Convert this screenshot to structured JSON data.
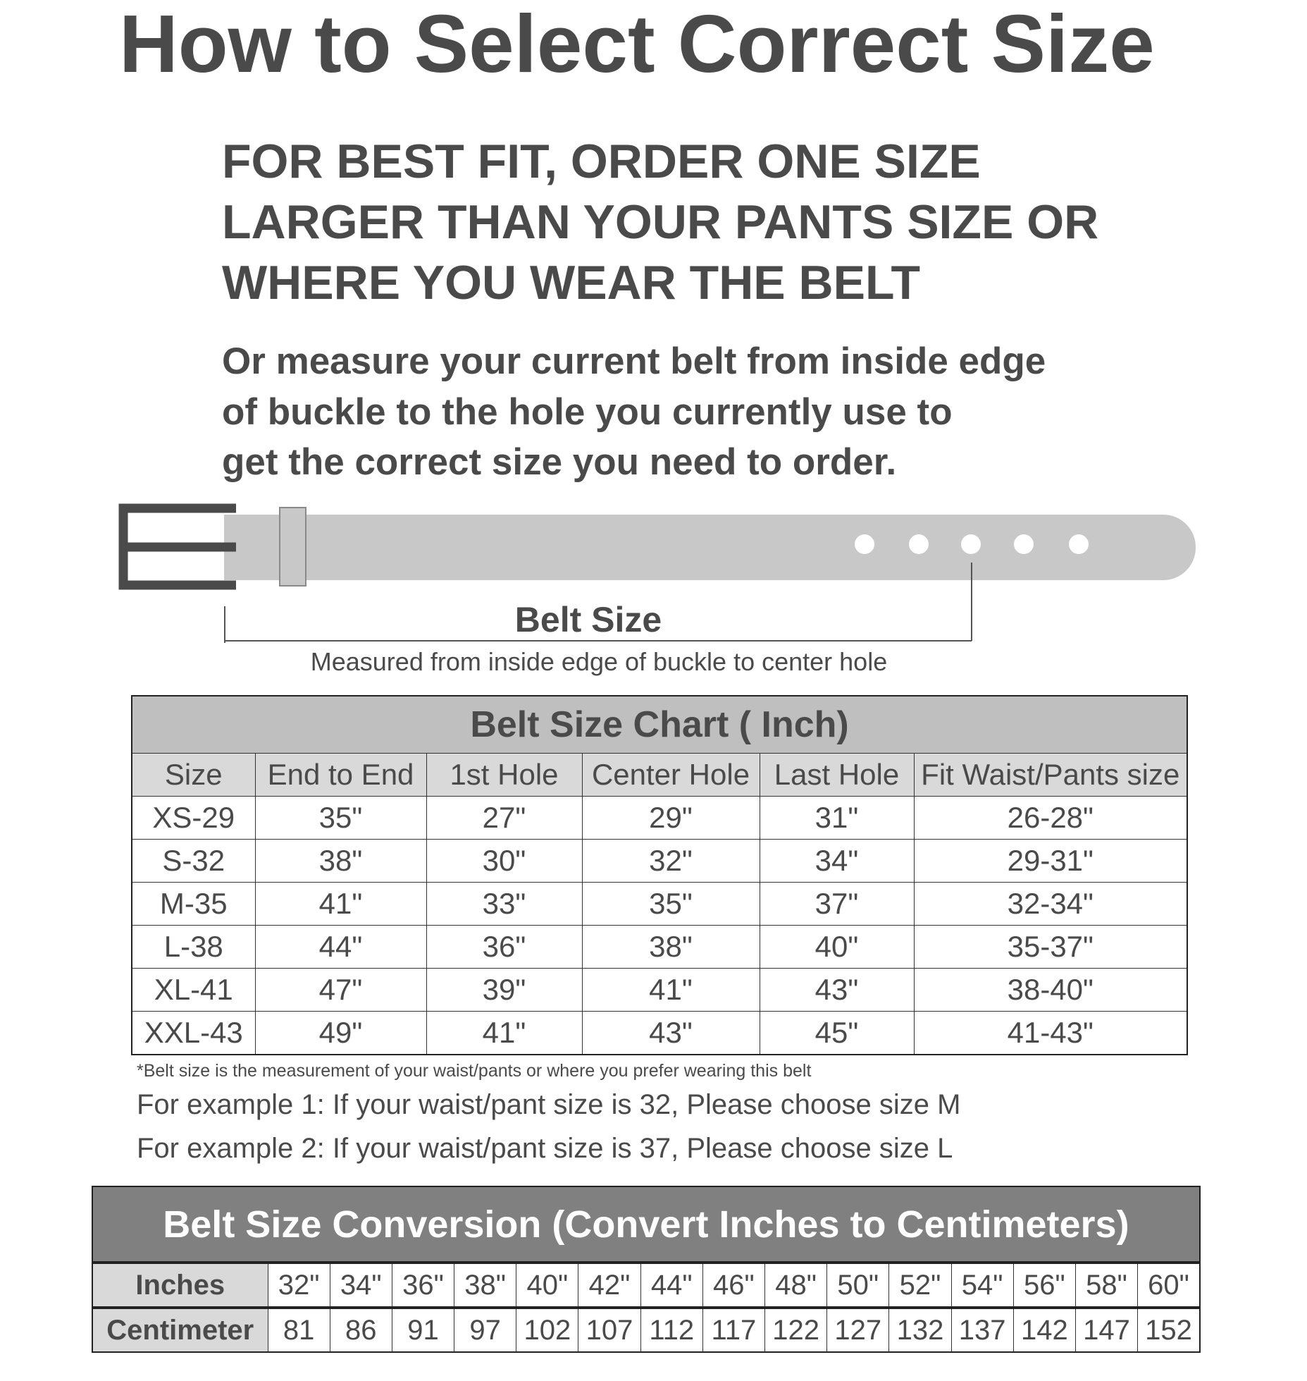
{
  "title": "How to Select Correct Size",
  "advice_lines": [
    "FOR BEST FIT, ORDER ONE SIZE",
    "LARGER THAN YOUR PANTS SIZE OR",
    "WHERE YOU WEAR THE BELT"
  ],
  "measure_lines": [
    "Or measure your current belt from inside edge",
    "of buckle to the hole you currently use to",
    "get the correct size you need to order."
  ],
  "diagram": {
    "label": "Belt Size",
    "caption": "Measured from inside edge of buckle to center hole"
  },
  "size_chart": {
    "title": "Belt Size Chart ( Inch)",
    "headers": [
      "Size",
      "End to End",
      "1st Hole",
      "Center Hole",
      "Last Hole",
      "Fit Waist/Pants size"
    ],
    "rows": [
      [
        "XS-29",
        "35\"",
        "27\"",
        "29\"",
        "31\"",
        "26-28\""
      ],
      [
        "S-32",
        "38\"",
        "30\"",
        "32\"",
        "34\"",
        "29-31\""
      ],
      [
        "M-35",
        "41\"",
        "33\"",
        "35\"",
        "37\"",
        "32-34\""
      ],
      [
        "L-38",
        "44\"",
        "36\"",
        "38\"",
        "40\"",
        "35-37\""
      ],
      [
        "XL-41",
        "47\"",
        "39\"",
        "41\"",
        "43\"",
        "38-40\""
      ],
      [
        "XXL-43",
        "49\"",
        "41\"",
        "43\"",
        "45\"",
        "41-43\""
      ]
    ],
    "note": "*Belt size is the measurement of your waist/pants or where you prefer wearing this belt",
    "examples": [
      "For example 1: If your waist/pant size is 32, Please choose size M",
      "For example 2: If your waist/pant size is 37, Please choose size L"
    ]
  },
  "conversion": {
    "title": "Belt Size Conversion (Convert Inches to Centimeters)",
    "inches_label": "Inches",
    "cm_label": "Centimeter",
    "inches": [
      "32\"",
      "34\"",
      "36\"",
      "38\"",
      "40\"",
      "42\"",
      "44\"",
      "46\"",
      "48\"",
      "50\"",
      "52\"",
      "54\"",
      "56\"",
      "58\"",
      "60\""
    ],
    "centimeters": [
      "81",
      "86",
      "91",
      "97",
      "102",
      "107",
      "112",
      "117",
      "122",
      "127",
      "132",
      "137",
      "142",
      "147",
      "152"
    ]
  },
  "colors": {
    "text": "#4a4a4a",
    "belt": "#c8c8c8",
    "buckle": "#4a4a4a",
    "chart_header": "#bfbfbf",
    "column_header": "#d9d9d9",
    "conversion_header": "#808080"
  }
}
